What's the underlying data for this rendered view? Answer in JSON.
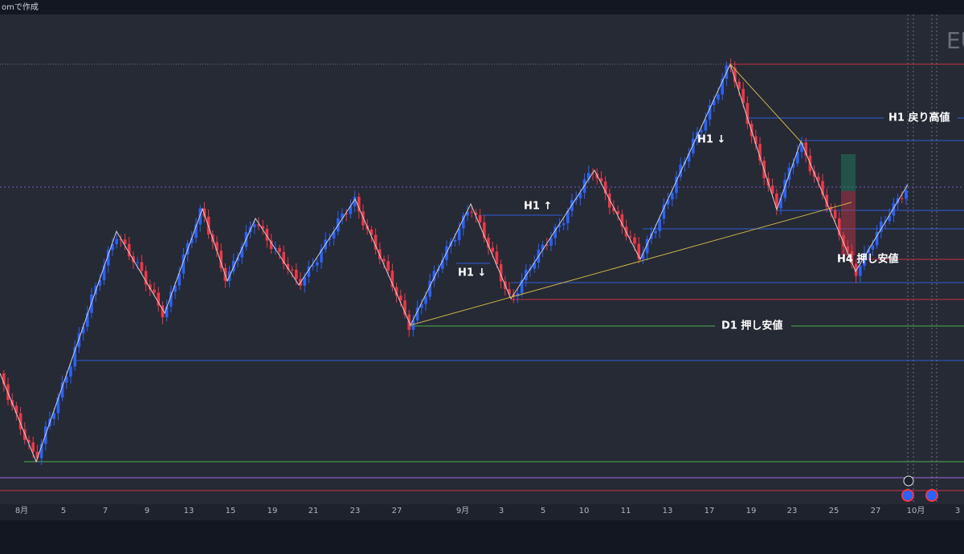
{
  "header": {
    "title": "omで作成"
  },
  "symbol": "EU",
  "annotations": [
    "H1 戻り高値",
    "H1 ↓",
    "H1 ↑",
    "H1 ↓",
    "H4 押し安値",
    "D1 押し安値"
  ],
  "x_axis": {
    "labels": [
      "8月",
      "5",
      "7",
      "9",
      "13",
      "15",
      "19",
      "21",
      "23",
      "27",
      "9月",
      "3",
      "5",
      "10",
      "11",
      "13",
      "17",
      "19",
      "23",
      "25",
      "27",
      "10月",
      "3"
    ]
  }
}
